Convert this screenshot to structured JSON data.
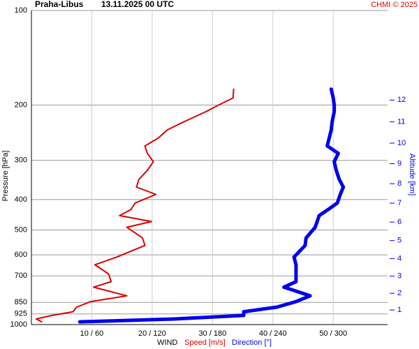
{
  "chart_data": {
    "type": "profile",
    "title": "Praha-Libus",
    "subtitle": "13.11.2025 00 UTC",
    "credit": "CHMI © 2025",
    "ylabel": "Pressure [hPa]",
    "xlabel": "WIND",
    "y2label": "Altitude [km]",
    "ylog": true,
    "ylim": [
      100,
      1000
    ],
    "yticks": [
      100,
      200,
      300,
      400,
      500,
      600,
      700,
      850,
      925,
      1000
    ],
    "xlim": [
      0,
      59
    ],
    "x2lim": [
      0,
      354
    ],
    "xticks": [
      {
        "value": 10,
        "label": "10 / 60"
      },
      {
        "value": 20,
        "label": "20 / 120"
      },
      {
        "value": 30,
        "label": "30 / 180"
      },
      {
        "value": 40,
        "label": "40 / 240"
      },
      {
        "value": 50,
        "label": "50 / 300"
      }
    ],
    "y2ticks": [
      1,
      2,
      3,
      4,
      5,
      6,
      7,
      8,
      9,
      10,
      11,
      12
    ],
    "grid": true,
    "y": [
      178,
      190,
      200,
      210,
      225,
      240,
      255,
      270,
      285,
      303,
      323,
      345,
      365,
      385,
      410,
      430,
      450,
      470,
      490,
      530,
      560,
      610,
      645,
      690,
      730,
      760,
      810,
      845,
      880,
      910,
      935,
      960,
      980
    ],
    "series": [
      {
        "name": "Speed [m/s]",
        "color": "#dd0000",
        "width": 2,
        "values": [
          33.5,
          33.4,
          31,
          28.9,
          25.5,
          22.5,
          21,
          18.8,
          19.2,
          20.2,
          19.2,
          17.8,
          17.4,
          20.6,
          17.2,
          16.5,
          14.6,
          19.9,
          15.8,
          18.4,
          18.8,
          14.1,
          10.5,
          12.8,
          13.2,
          10.3,
          15.8,
          9.8,
          7.5,
          6.9,
          3.4,
          0.8,
          1.7
        ]
      },
      {
        "name": "Direction [°]",
        "color": "#0000ee",
        "width": 5,
        "axis": "x2",
        "values": [
          298,
          300,
          301,
          301,
          299,
          298,
          296,
          294,
          305,
          301,
          303,
          306,
          310,
          307,
          304,
          295,
          286,
          284,
          282,
          273,
          272,
          261,
          263,
          263,
          263,
          251,
          277,
          263,
          244,
          211,
          211,
          142,
          48
        ]
      }
    ]
  }
}
